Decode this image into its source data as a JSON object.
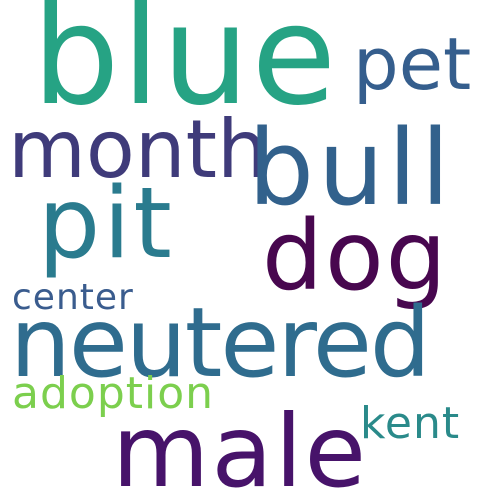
{
  "word_cloud": {
    "background": "#ffffff",
    "words": [
      {
        "key": "blue",
        "text": "blue",
        "color": "#26a384"
      },
      {
        "key": "pet",
        "text": "pet",
        "color": "#355e8d"
      },
      {
        "key": "month",
        "text": "month",
        "color": "#3f3b7a"
      },
      {
        "key": "bull",
        "text": "bull",
        "color": "#32618c"
      },
      {
        "key": "pit",
        "text": "pit",
        "color": "#2a7b8e"
      },
      {
        "key": "dog",
        "text": "dog",
        "color": "#48074f"
      },
      {
        "key": "center",
        "text": "center",
        "color": "#3a5c8e"
      },
      {
        "key": "neutered",
        "text": "neutered",
        "color": "#2f6c8e"
      },
      {
        "key": "adoption",
        "text": "adoption",
        "color": "#7ccf4e"
      },
      {
        "key": "kent",
        "text": "kent",
        "color": "#2a8a8a"
      },
      {
        "key": "male",
        "text": "male",
        "color": "#47136a"
      }
    ]
  }
}
